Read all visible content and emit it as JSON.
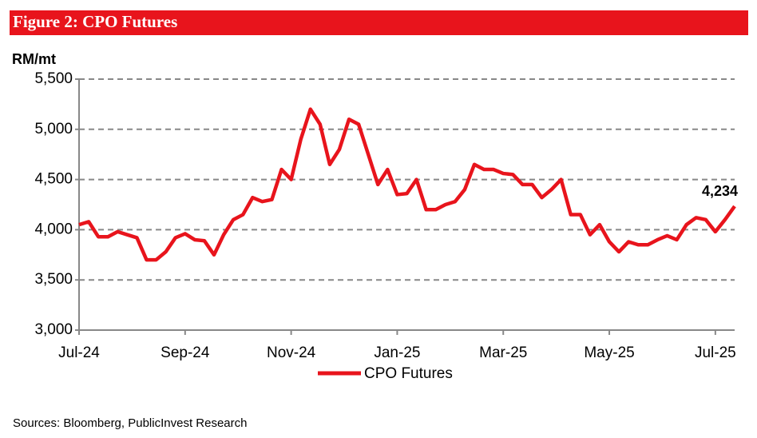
{
  "chart_data": {
    "type": "line",
    "title": "Figure 2: CPO Futures",
    "y_label": "RM/mt",
    "source": "Sources: Bloomberg, PublicInvest Research",
    "categories": [
      "Jul-24",
      null,
      null,
      null,
      null,
      null,
      null,
      null,
      null,
      null,
      null,
      "Sep-24",
      null,
      null,
      null,
      null,
      null,
      null,
      null,
      null,
      null,
      null,
      "Nov-24",
      null,
      null,
      null,
      null,
      null,
      null,
      null,
      null,
      null,
      null,
      "Jan-25",
      null,
      null,
      null,
      null,
      null,
      null,
      null,
      null,
      null,
      null,
      "Mar-25",
      null,
      null,
      null,
      null,
      null,
      null,
      null,
      null,
      null,
      null,
      "May-25",
      null,
      null,
      null,
      null,
      null,
      null,
      null,
      null,
      null,
      null,
      "Jul-25",
      null,
      null
    ],
    "series": [
      {
        "name": "CPO Futures",
        "color": "#e8141c",
        "values": [
          4050,
          4080,
          3930,
          3930,
          3980,
          3950,
          3920,
          3700,
          3700,
          3780,
          3920,
          3960,
          3900,
          3890,
          3750,
          3950,
          4100,
          4150,
          4320,
          4280,
          4300,
          4600,
          4500,
          4900,
          5200,
          5050,
          4650,
          4800,
          5100,
          5050,
          4750,
          4450,
          4600,
          4350,
          4360,
          4500,
          4200,
          4200,
          4250,
          4280,
          4400,
          4650,
          4600,
          4600,
          4560,
          4550,
          4450,
          4450,
          4320,
          4400,
          4500,
          4150,
          4150,
          3950,
          4050,
          3880,
          3780,
          3880,
          3850,
          3850,
          3900,
          3940,
          3900,
          4050,
          4120,
          4100,
          3980,
          4100,
          4234
        ],
        "value_labels": [
          null,
          null,
          null,
          null,
          null,
          null,
          null,
          null,
          null,
          null,
          null,
          null,
          null,
          null,
          null,
          null,
          null,
          null,
          null,
          null,
          null,
          null,
          null,
          null,
          null,
          null,
          null,
          null,
          null,
          null,
          null,
          null,
          null,
          null,
          null,
          null,
          null,
          null,
          null,
          null,
          null,
          null,
          null,
          null,
          null,
          null,
          null,
          null,
          null,
          null,
          null,
          null,
          null,
          null,
          null,
          null,
          null,
          null,
          null,
          null,
          null,
          null,
          null,
          null,
          null,
          null,
          null,
          null,
          "4,234"
        ]
      }
    ],
    "ylim": [
      3000,
      5500
    ],
    "yticks": [
      {
        "value": 3000,
        "label": "3,000"
      },
      {
        "value": 3500,
        "label": "3,500"
      },
      {
        "value": 4000,
        "label": "4,000"
      },
      {
        "value": 4500,
        "label": "4,500"
      },
      {
        "value": 5000,
        "label": "5,000"
      },
      {
        "value": 5500,
        "label": "5,500"
      }
    ],
    "grid": true
  }
}
